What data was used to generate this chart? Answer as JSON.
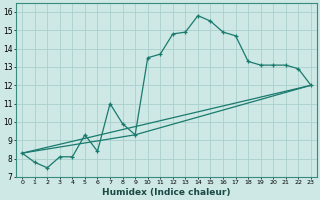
{
  "xlabel": "Humidex (Indice chaleur)",
  "ylabel": "",
  "xlim": [
    -0.5,
    23.5
  ],
  "ylim": [
    7,
    16.5
  ],
  "yticks": [
    7,
    8,
    9,
    10,
    11,
    12,
    13,
    14,
    15,
    16
  ],
  "xticks": [
    0,
    1,
    2,
    3,
    4,
    5,
    6,
    7,
    8,
    9,
    10,
    11,
    12,
    13,
    14,
    15,
    16,
    17,
    18,
    19,
    20,
    21,
    22,
    23
  ],
  "bg_color": "#cde8e5",
  "grid_color": "#aacfcc",
  "line_color": "#1a7a6e",
  "lines": [
    {
      "x": [
        0,
        1,
        2,
        3,
        4,
        5,
        6,
        7,
        8,
        9,
        10,
        11,
        12,
        13,
        14,
        15,
        16,
        17,
        18,
        19,
        20,
        21,
        22,
        23
      ],
      "y": [
        8.3,
        7.8,
        7.5,
        8.1,
        8.1,
        9.3,
        8.4,
        11.0,
        9.9,
        9.3,
        13.5,
        13.7,
        14.8,
        14.9,
        15.8,
        15.5,
        14.9,
        14.7,
        13.3,
        13.1,
        13.1,
        13.1,
        12.9,
        12.0
      ]
    },
    {
      "x": [
        0,
        23
      ],
      "y": [
        8.3,
        12.0
      ]
    },
    {
      "x": [
        0,
        9,
        23
      ],
      "y": [
        8.3,
        9.3,
        12.0
      ]
    }
  ]
}
